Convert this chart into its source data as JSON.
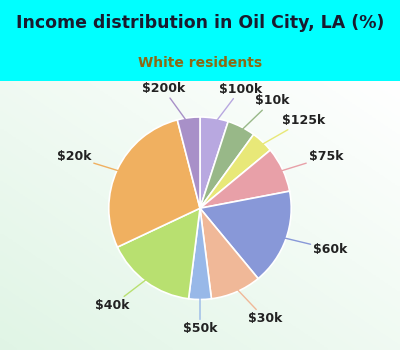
{
  "title": "Income distribution in Oil City, LA (%)",
  "subtitle": "White residents",
  "title_color": "#1a1a2e",
  "subtitle_color": "#8b6914",
  "background_outer": "#00ffff",
  "slices": [
    {
      "label": "$100k",
      "value": 5,
      "color": "#b8a8e0"
    },
    {
      "label": "$10k",
      "value": 5,
      "color": "#98b888"
    },
    {
      "label": "$125k",
      "value": 4,
      "color": "#e8e878"
    },
    {
      "label": "$75k",
      "value": 8,
      "color": "#e8a0a8"
    },
    {
      "label": "$60k",
      "value": 17,
      "color": "#8898d8"
    },
    {
      "label": "$30k",
      "value": 9,
      "color": "#f0b898"
    },
    {
      "label": "$50k",
      "value": 4,
      "color": "#98b8e8"
    },
    {
      "label": "$40k",
      "value": 16,
      "color": "#b8e070"
    },
    {
      "label": "$20k",
      "value": 28,
      "color": "#f0b060"
    },
    {
      "label": "$200k",
      "value": 4,
      "color": "#a890c8"
    }
  ],
  "label_fontsize": 9,
  "startangle": 90
}
